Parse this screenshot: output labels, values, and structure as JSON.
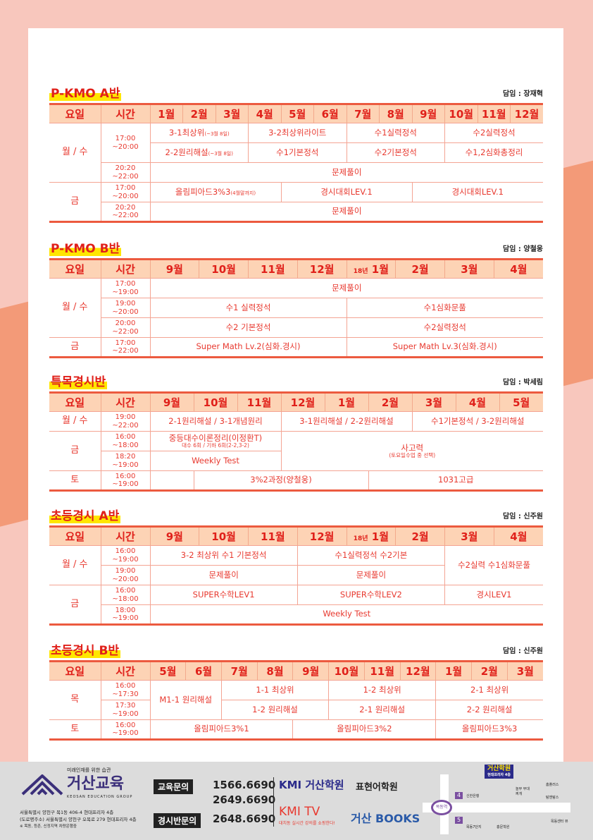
{
  "sections": [
    {
      "title": "P-KMO A반",
      "teacher": "담임 : 장재혁",
      "head_day": "요일",
      "head_time": "시간",
      "months": [
        {
          "label": "1월"
        },
        {
          "label": "2월"
        },
        {
          "label": "3월"
        },
        {
          "label": "4월"
        },
        {
          "label": "5월"
        },
        {
          "label": "6월"
        },
        {
          "label": "7월"
        },
        {
          "label": "8월"
        },
        {
          "label": "9월"
        },
        {
          "label": "10월"
        },
        {
          "label": "11월"
        },
        {
          "label": "12월"
        }
      ],
      "rows": [
        {
          "day": "월 / 수",
          "dayRows": 3,
          "time": "17:00\n~20:00",
          "timeRows": 2,
          "cells": [
            {
              "text": "3-1최상위",
              "note": "(~3월 8일)",
              "span": 3
            },
            {
              "text": "3-2최상위라이트",
              "span": 3
            },
            {
              "text": "수1실력정석",
              "span": 3
            },
            {
              "text": "수2실력정석",
              "span": 3
            }
          ]
        },
        {
          "cells": [
            {
              "text": "2-2원리해설",
              "note": "(~3월 8일)",
              "span": 3
            },
            {
              "text": "수1기본정석",
              "span": 3
            },
            {
              "text": "수2기본정석",
              "span": 3
            },
            {
              "text": "수1,2심화총정리",
              "span": 3
            }
          ]
        },
        {
          "time": "20:20\n~22:00",
          "cells": [
            {
              "text": "문제풀이",
              "span": 12
            }
          ]
        },
        {
          "day": "금",
          "dayRows": 2,
          "time": "17:00\n~20:00",
          "cells": [
            {
              "text": "올림피아드3%3",
              "note": "(4월말까지)",
              "span": 4
            },
            {
              "text": "경시대회LEV.1",
              "span": 4
            },
            {
              "text": "경시대회LEV.1",
              "span": 4
            }
          ]
        },
        {
          "time": "20:20\n~22:00",
          "cells": [
            {
              "text": "문제풀이",
              "span": 12
            }
          ]
        }
      ]
    },
    {
      "title": "P-KMO B반",
      "teacher": "담임 : 양철웅",
      "head_day": "요일",
      "head_time": "시간",
      "months": [
        {
          "label": "9월"
        },
        {
          "label": "10월"
        },
        {
          "label": "11월"
        },
        {
          "label": "12월"
        },
        {
          "prefix": "18년",
          "label": "1월"
        },
        {
          "label": "2월"
        },
        {
          "label": "3월"
        },
        {
          "label": "4월"
        }
      ],
      "rows": [
        {
          "day": "월 / 수",
          "dayRows": 3,
          "time": "17:00\n~19:00",
          "cells": [
            {
              "text": "문제풀이",
              "span": 8
            }
          ]
        },
        {
          "time": "19:00\n~20:00",
          "cells": [
            {
              "text": "수1 실력정석",
              "span": 4
            },
            {
              "text": "수1심화문풀",
              "span": 4
            }
          ]
        },
        {
          "time": "20:00\n~22:00",
          "cells": [
            {
              "text": "수2 기본정석",
              "span": 4
            },
            {
              "text": "수2실력정석",
              "span": 4
            }
          ]
        },
        {
          "day": "금",
          "dayRows": 1,
          "time": "17:00\n~22:00",
          "cells": [
            {
              "text": "Super Math Lv.2(심화.경시)",
              "span": 4
            },
            {
              "text": "Super Math Lv.3(심화.경시)",
              "span": 4
            }
          ]
        }
      ]
    },
    {
      "title": "특목경시반",
      "teacher": "담임 : 박세림",
      "head_day": "요일",
      "head_time": "시간",
      "months": [
        {
          "label": "9월"
        },
        {
          "label": "10월"
        },
        {
          "label": "11월"
        },
        {
          "label": "12월"
        },
        {
          "label": "1월"
        },
        {
          "label": "2월"
        },
        {
          "label": "3월"
        },
        {
          "label": "4월"
        },
        {
          "label": "5월"
        }
      ],
      "rows": [
        {
          "day": "월 / 수",
          "dayRows": 1,
          "time": "19:00\n~22:00",
          "cells": [
            {
              "text": "2-1원리해설 / 3-1개념원리",
              "span": 3
            },
            {
              "text": "3-1원리해설 / 2-2원리해설",
              "span": 3
            },
            {
              "text": "수1기본정석 / 3-2원리해설",
              "span": 3
            }
          ]
        },
        {
          "day": "금",
          "dayRows": 2,
          "time": "16:00\n~18:00",
          "cells": [
            {
              "text": "중등대수이론정리(이정환T)",
              "sub": "대수 6회 / 기하 6회(2-2,3-2)",
              "span": 3
            },
            {
              "text": "사고력",
              "sub": "(토요일수업 중 선택)",
              "span": 6,
              "rows": 2
            }
          ]
        },
        {
          "time": "18:20\n~19:00",
          "cells": [
            {
              "text": "Weekly Test",
              "span": 3
            }
          ]
        },
        {
          "day": "토",
          "dayRows": 1,
          "time": "16:00\n~19:00",
          "cells": [
            {
              "text": "",
              "span": 1
            },
            {
              "text": "3%2과정(양철웅)",
              "span": 4
            },
            {
              "text": "1031고급",
              "span": 4
            }
          ]
        }
      ]
    },
    {
      "title": "초등경시 A반",
      "teacher": "담임 : 신주원",
      "head_day": "요일",
      "head_time": "시간",
      "months": [
        {
          "label": "9월"
        },
        {
          "label": "10월"
        },
        {
          "label": "11월"
        },
        {
          "label": "12월"
        },
        {
          "prefix": "18년",
          "label": "1월"
        },
        {
          "label": "2월"
        },
        {
          "label": "3월"
        },
        {
          "label": "4월"
        }
      ],
      "rows": [
        {
          "day": "월 / 수",
          "dayRows": 2,
          "time": "16:00\n~19:00",
          "cells": [
            {
              "text": "3-2 최상위 수1 기본정석",
              "span": 3
            },
            {
              "text": "수1실력정석 수2기본",
              "span": 3
            },
            {
              "text": "수2실력 수1심화문풀",
              "span": 2,
              "rows": 2
            }
          ]
        },
        {
          "time": "19:00\n~20:00",
          "cells": [
            {
              "text": "문제풀이",
              "span": 3
            },
            {
              "text": "문제풀이",
              "span": 3
            }
          ]
        },
        {
          "day": "금",
          "dayRows": 2,
          "time": "16:00\n~18:00",
          "cells": [
            {
              "text": "SUPER수학LEV1",
              "span": 3
            },
            {
              "text": "SUPER수학LEV2",
              "span": 3
            },
            {
              "text": "경시LEV1",
              "span": 2
            }
          ]
        },
        {
          "time": "18:00\n~19:00",
          "cells": [
            {
              "text": "Weekly Test",
              "span": 8
            }
          ]
        }
      ]
    },
    {
      "title": "초등경시 B반",
      "teacher": "담임 : 신주원",
      "head_day": "요일",
      "head_time": "시간",
      "months": [
        {
          "label": "5월"
        },
        {
          "label": "6월"
        },
        {
          "label": "7월"
        },
        {
          "label": "8월"
        },
        {
          "label": "9월"
        },
        {
          "label": "10월"
        },
        {
          "label": "11월"
        },
        {
          "label": "12월"
        },
        {
          "label": "1월"
        },
        {
          "label": "2월"
        },
        {
          "label": "3월"
        }
      ],
      "rows": [
        {
          "day": "목",
          "dayRows": 2,
          "time": "16:00\n~17:30",
          "cells": [
            {
              "text": "M1-1 원리해설",
              "span": 2,
              "rows": 2
            },
            {
              "text": "1-1 최상위",
              "span": 3
            },
            {
              "text": "1-2 최상위",
              "span": 3
            },
            {
              "text": "2-1 최상위",
              "span": 3
            }
          ]
        },
        {
          "time": "17:30\n~19:00",
          "cells": [
            {
              "text": "1-2 원리해설",
              "span": 3
            },
            {
              "text": "2-1 원리해설",
              "span": 3
            },
            {
              "text": "2-2 원리해설",
              "span": 3
            }
          ]
        },
        {
          "day": "토",
          "dayRows": 1,
          "time": "16:00\n~19:00",
          "cells": [
            {
              "text": "올림피아드3%1",
              "span": 4
            },
            {
              "text": "올림피아드3%2",
              "span": 4
            },
            {
              "text": "올림피아드3%3",
              "span": 3
            }
          ]
        }
      ]
    }
  ],
  "footer": {
    "slogan": "미래인재를 위한 습관",
    "brand": "거산교육",
    "brand_en": "KEOSAN EDUCATION GROUP",
    "address1": "서울특별시 양천구 목1동 406-4 현대프리자 4층",
    "address2": "(도로명주소) 서울특별시 양천구 오목로 279 현대프리자 4층",
    "address3": "※ 목동, 등촌, 신정지역 차량운행중",
    "edu_label": "교육문의",
    "edu_phone1": "1566.6690",
    "edu_phone2": "2649.6690",
    "contest_label": "경시반문의",
    "contest_phone": "2648.6690",
    "brands": [
      "KMI 거산학원",
      "표현어학원",
      "KMI TV",
      "거산 BOOKS"
    ],
    "kmitv_tagline": "대치동 실시간 강의를 쇼핑한다!",
    "map": {
      "title": "거산학원",
      "subtitle": "현대프리자 4층",
      "station": "목동역",
      "exit4": "4",
      "exit5": "5",
      "pois": [
        "신한은행",
        "놀부 부대찌개",
        "홈플러스",
        "탐앤탐스",
        "목동7단지",
        "홍문학원",
        "목동센터 뷰"
      ]
    }
  }
}
